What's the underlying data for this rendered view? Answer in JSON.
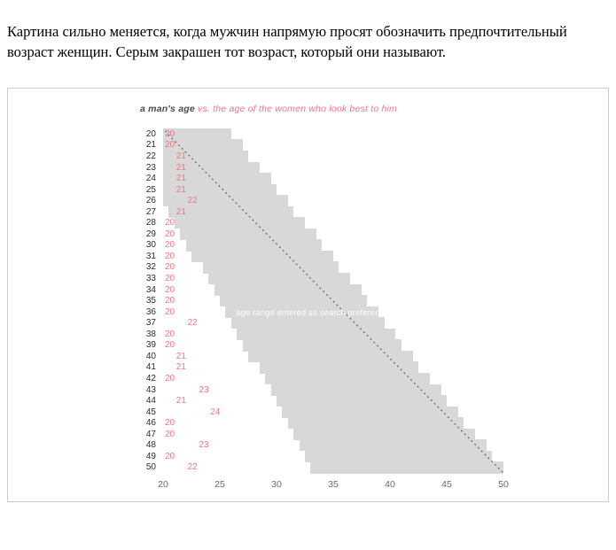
{
  "page": {
    "intro_text": "Картина сильно меняется, когда мужчин напрямую просят обозначить предпочтительный возраст женщин. Серым закрашен тот возраст, который они называют."
  },
  "chart_data": {
    "type": "area",
    "title_primary": "a man's age",
    "title_secondary": "vs. the age of the women who look best to him",
    "annotation": "age range entered as search preference",
    "x_ticks": [
      20,
      25,
      30,
      35,
      40,
      45,
      50
    ],
    "x_range": [
      20,
      50
    ],
    "y_range": [
      20,
      50
    ],
    "colors": {
      "band": "#d8d8d8",
      "best_age": "#ef7787",
      "title_primary": "#4a4a4a",
      "axis_text": "#2b2b2b",
      "tick_text": "#666666",
      "annotation_text": "#ffffff",
      "diagonal": "#4d5b5b"
    },
    "diagonal": {
      "from": [
        20,
        20
      ],
      "to": [
        50,
        50
      ],
      "style": "dotted"
    },
    "rows": [
      {
        "age": 20,
        "best": 20,
        "search_min": 20,
        "search_max": 26
      },
      {
        "age": 21,
        "best": 20,
        "search_min": 20,
        "search_max": 27
      },
      {
        "age": 22,
        "best": 21,
        "search_min": 20,
        "search_max": 27.5
      },
      {
        "age": 23,
        "best": 21,
        "search_min": 20,
        "search_max": 28.5
      },
      {
        "age": 24,
        "best": 21,
        "search_min": 20,
        "search_max": 29.5
      },
      {
        "age": 25,
        "best": 21,
        "search_min": 20,
        "search_max": 30
      },
      {
        "age": 26,
        "best": 22,
        "search_min": 20,
        "search_max": 31
      },
      {
        "age": 27,
        "best": 21,
        "search_min": 20.5,
        "search_max": 31.5
      },
      {
        "age": 28,
        "best": 20,
        "search_min": 21,
        "search_max": 32.5
      },
      {
        "age": 29,
        "best": 20,
        "search_min": 21.5,
        "search_max": 33.5
      },
      {
        "age": 30,
        "best": 20,
        "search_min": 22,
        "search_max": 34
      },
      {
        "age": 31,
        "best": 20,
        "search_min": 22.5,
        "search_max": 35
      },
      {
        "age": 32,
        "best": 20,
        "search_min": 23.5,
        "search_max": 35.5
      },
      {
        "age": 33,
        "best": 20,
        "search_min": 24,
        "search_max": 36.5
      },
      {
        "age": 34,
        "best": 20,
        "search_min": 24.5,
        "search_max": 37.5
      },
      {
        "age": 35,
        "best": 20,
        "search_min": 25,
        "search_max": 38
      },
      {
        "age": 36,
        "best": 20,
        "search_min": 25.5,
        "search_max": 39
      },
      {
        "age": 37,
        "best": 22,
        "search_min": 26,
        "search_max": 39.5
      },
      {
        "age": 38,
        "best": 20,
        "search_min": 26.5,
        "search_max": 40.5
      },
      {
        "age": 39,
        "best": 20,
        "search_min": 27,
        "search_max": 41
      },
      {
        "age": 40,
        "best": 21,
        "search_min": 27.5,
        "search_max": 42
      },
      {
        "age": 41,
        "best": 21,
        "search_min": 28.5,
        "search_max": 42.5
      },
      {
        "age": 42,
        "best": 20,
        "search_min": 29,
        "search_max": 43.5
      },
      {
        "age": 43,
        "best": 23,
        "search_min": 29.5,
        "search_max": 44.5
      },
      {
        "age": 44,
        "best": 21,
        "search_min": 30,
        "search_max": 45
      },
      {
        "age": 45,
        "best": 24,
        "search_min": 30.5,
        "search_max": 46
      },
      {
        "age": 46,
        "best": 20,
        "search_min": 31,
        "search_max": 46.5
      },
      {
        "age": 47,
        "best": 20,
        "search_min": 31.5,
        "search_max": 47.5
      },
      {
        "age": 48,
        "best": 23,
        "search_min": 32,
        "search_max": 48.5
      },
      {
        "age": 49,
        "best": 20,
        "search_min": 32.5,
        "search_max": 49
      },
      {
        "age": 50,
        "best": 22,
        "search_min": 33,
        "search_max": 50
      }
    ]
  }
}
